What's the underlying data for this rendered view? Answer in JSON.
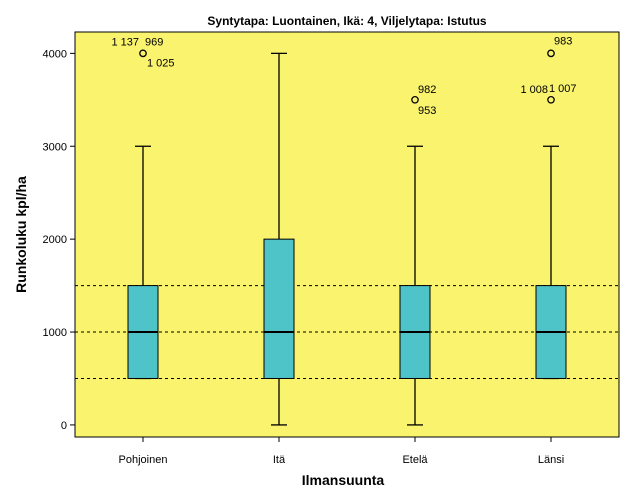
{
  "chart_data": {
    "type": "boxplot",
    "title": "Syntytapa: Luontainen, Ikä: 4, Viljelytapa: Istutus",
    "xlabel": "Ilmansuunta",
    "ylabel": "Runkoluku kpl/ha",
    "ylim": [
      -130,
      4230
    ],
    "yticks": [
      0,
      1000,
      2000,
      3000,
      4000
    ],
    "reference_lines": [
      500,
      1000,
      1500
    ],
    "grid": false,
    "legend": "none",
    "categories": [
      "Pohjoinen",
      "Itä",
      "Etelä",
      "Länsi"
    ],
    "boxes": [
      {
        "category": "Pohjoinen",
        "whisker_low": 500,
        "q1": 500,
        "median": 1000,
        "q3": 1500,
        "whisker_high": 3000,
        "outliers": [
          {
            "value": 4000,
            "labels": [
              "1 137",
              "969",
              "1 025"
            ]
          }
        ]
      },
      {
        "category": "Itä",
        "whisker_low": 0,
        "q1": 500,
        "median": 1000,
        "q3": 2000,
        "whisker_high": 4000,
        "outliers": []
      },
      {
        "category": "Etelä",
        "whisker_low": 0,
        "q1": 500,
        "median": 1000,
        "q3": 1500,
        "whisker_high": 3000,
        "outliers": [
          {
            "value": 3500,
            "labels": [
              "982",
              "953"
            ]
          }
        ]
      },
      {
        "category": "Länsi",
        "whisker_low": 500,
        "q1": 500,
        "median": 1000,
        "q3": 1500,
        "whisker_high": 3000,
        "outliers": [
          {
            "value": 4000,
            "labels": [
              "983"
            ]
          },
          {
            "value": 3500,
            "labels": [
              "1 008",
              "1 007"
            ]
          }
        ]
      }
    ]
  },
  "colors": {
    "plot_background": "#f9f36e",
    "box_fill": "#4ec3c8",
    "line": "#000000"
  }
}
